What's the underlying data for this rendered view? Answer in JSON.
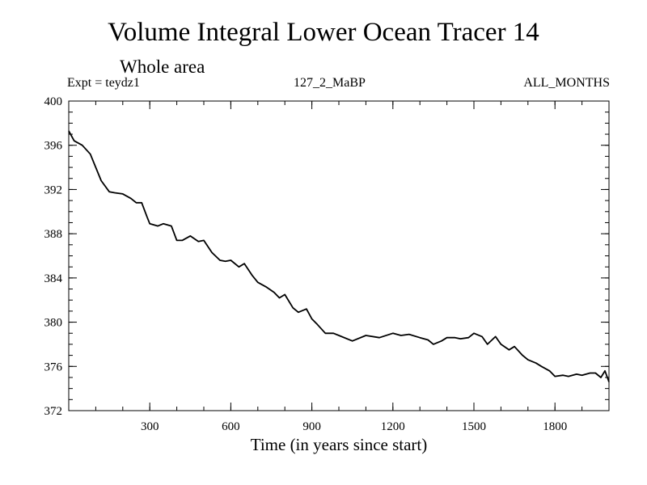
{
  "chart_data": {
    "type": "line",
    "title": "Volume Integral Lower Ocean Tracer 14",
    "subtitle": "Whole area",
    "experiment_label": "Expt = teydz1",
    "case_label": "127_2_MaBP",
    "period_label": "ALL_MONTHS",
    "xlabel": "Time (in years since start)",
    "ylabel": "",
    "xlim": [
      0,
      2000
    ],
    "ylim": [
      372,
      400
    ],
    "x_ticks": [
      300,
      600,
      900,
      1200,
      1500,
      1800
    ],
    "y_ticks": [
      372,
      376,
      380,
      384,
      388,
      392,
      396,
      400
    ],
    "x_minor_step": 100,
    "y_minor_step": 1,
    "grid": false,
    "series": [
      {
        "name": "Lower Ocean Tracer 14",
        "color": "#000000",
        "x": [
          0,
          20,
          50,
          80,
          100,
          120,
          150,
          170,
          200,
          230,
          250,
          270,
          290,
          300,
          330,
          350,
          380,
          400,
          420,
          450,
          480,
          500,
          530,
          560,
          580,
          600,
          630,
          650,
          680,
          700,
          730,
          760,
          780,
          800,
          830,
          850,
          880,
          900,
          920,
          950,
          980,
          1000,
          1050,
          1100,
          1150,
          1200,
          1230,
          1260,
          1300,
          1330,
          1350,
          1380,
          1400,
          1430,
          1450,
          1480,
          1500,
          1530,
          1550,
          1580,
          1600,
          1630,
          1650,
          1680,
          1700,
          1730,
          1750,
          1780,
          1800,
          1830,
          1850,
          1880,
          1900,
          1930,
          1950,
          1970,
          1985,
          2000
        ],
        "values": [
          397.3,
          396.4,
          396.0,
          395.2,
          394.0,
          392.8,
          391.8,
          391.7,
          391.6,
          391.2,
          390.8,
          390.8,
          389.5,
          388.9,
          388.7,
          388.9,
          388.7,
          387.4,
          387.4,
          387.8,
          387.3,
          387.4,
          386.3,
          385.6,
          385.5,
          385.6,
          385.0,
          385.3,
          384.2,
          383.6,
          383.2,
          382.7,
          382.2,
          382.5,
          381.3,
          380.9,
          381.2,
          380.3,
          379.8,
          379.0,
          379.0,
          378.8,
          378.3,
          378.8,
          378.6,
          379.0,
          378.8,
          378.9,
          378.6,
          378.4,
          378.0,
          378.3,
          378.6,
          378.6,
          378.5,
          378.6,
          379.0,
          378.7,
          378.0,
          378.7,
          378.0,
          377.5,
          377.8,
          377.0,
          376.6,
          376.3,
          376.0,
          375.6,
          375.1,
          375.2,
          375.1,
          375.3,
          375.2,
          375.4,
          375.4,
          375.0,
          375.6,
          374.6
        ]
      }
    ]
  }
}
